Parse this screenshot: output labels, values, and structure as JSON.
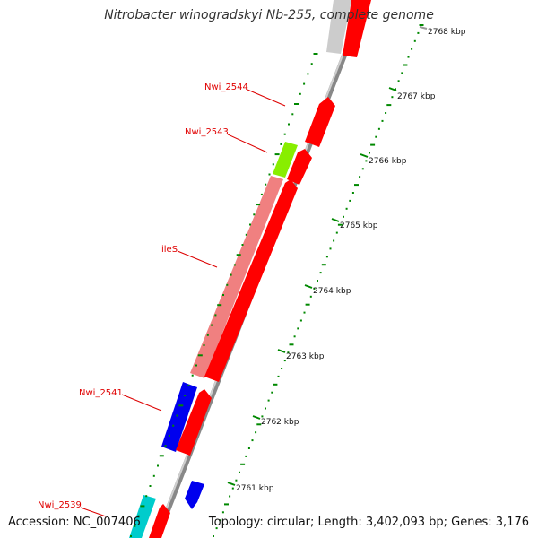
{
  "title": "Nitrobacter winogradskyi Nb-255, complete genome",
  "accession": "Accession: NC_007406",
  "summary": "Topology: circular; Length: 3,402,093 bp; Genes: 3,176",
  "colors": {
    "forward_gene": "#ff0000",
    "reverse_gene": "#0000ee",
    "rrna_or_other": "#00cccc",
    "highlight_gene": "#88ee00",
    "pseudo_gene": "#f08080",
    "tick": "#008800",
    "label": "#dd0000"
  },
  "scale_labels": [
    "2768 kbp",
    "2767 kbp",
    "2766 kbp",
    "2765 kbp",
    "2764 kbp",
    "2763 kbp",
    "2762 kbp",
    "2761 kbp"
  ],
  "gene_labels": [
    "Nwi_2544",
    "Nwi_2543",
    "ileS",
    "Nwi_2541",
    "Nwi_2539"
  ]
}
